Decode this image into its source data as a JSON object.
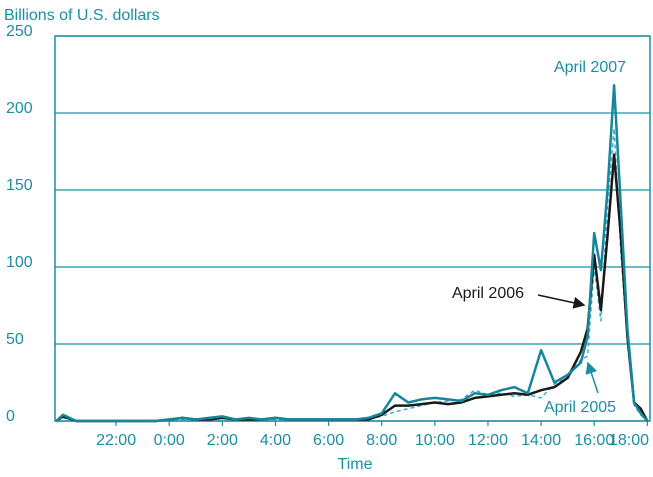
{
  "chart_data": {
    "type": "line",
    "ylabel": "Billions of U.S. dollars",
    "xlabel": "Time",
    "x": [
      19.75,
      20,
      20.5,
      21,
      21.5,
      22,
      22.5,
      23,
      23.5,
      24,
      24.5,
      25,
      25.5,
      26,
      26.5,
      27,
      27.5,
      28,
      28.5,
      29,
      29.5,
      30,
      30.5,
      31,
      31.5,
      32,
      32.5,
      33,
      33.5,
      34,
      34.5,
      35,
      35.5,
      36,
      36.5,
      37,
      37.5,
      38,
      38.5,
      39,
      39.5,
      39.75,
      40,
      40.25,
      40.5,
      40.75,
      41,
      41.25,
      41.5,
      41.75,
      42
    ],
    "series": [
      {
        "name": "April 2005",
        "color": "#3fb0c9",
        "line_style": "dashed",
        "values": [
          0,
          2,
          0,
          0,
          0,
          0,
          0,
          0,
          0,
          1,
          1,
          1,
          2,
          2,
          1,
          1,
          1,
          1,
          1,
          1,
          1,
          1,
          1,
          1,
          1,
          3,
          6,
          8,
          10,
          12,
          13,
          14,
          20,
          17,
          18,
          16,
          17,
          15,
          24,
          28,
          40,
          42,
          100,
          65,
          140,
          190,
          110,
          50,
          10,
          4,
          0
        ]
      },
      {
        "name": "April 2006",
        "color": "#1a1a1a",
        "line_style": "solid",
        "values": [
          0,
          3,
          0,
          0,
          0,
          0,
          0,
          0,
          0,
          1,
          2,
          1,
          1,
          2,
          1,
          1,
          1,
          2,
          1,
          1,
          1,
          1,
          1,
          1,
          1,
          4,
          10,
          10,
          11,
          12,
          11,
          12,
          15,
          16,
          17,
          18,
          17,
          20,
          22,
          28,
          45,
          60,
          108,
          72,
          120,
          173,
          120,
          55,
          12,
          8,
          0
        ]
      },
      {
        "name": "April 2007",
        "color": "#17869b",
        "line_style": "solid",
        "values": [
          0,
          4,
          0,
          0,
          0,
          0,
          0,
          0,
          0,
          1,
          2,
          1,
          2,
          3,
          1,
          2,
          1,
          2,
          1,
          1,
          1,
          1,
          1,
          1,
          2,
          5,
          18,
          12,
          14,
          15,
          14,
          13,
          18,
          17,
          20,
          22,
          18,
          46,
          25,
          30,
          38,
          55,
          122,
          98,
          150,
          218,
          140,
          60,
          12,
          5,
          0
        ]
      }
    ],
    "xlim": [
      19.7,
      42.1
    ],
    "xticks": [
      {
        "value": 22,
        "label": "22:00"
      },
      {
        "value": 24,
        "label": "0:00"
      },
      {
        "value": 26,
        "label": "2:00"
      },
      {
        "value": 28,
        "label": "4:00"
      },
      {
        "value": 30,
        "label": "6:00"
      },
      {
        "value": 32,
        "label": "8:00"
      },
      {
        "value": 34,
        "label": "10:00"
      },
      {
        "value": 36,
        "label": "12:00"
      },
      {
        "value": 38,
        "label": "14:00"
      },
      {
        "value": 40,
        "label": "16:00"
      },
      {
        "value": 42,
        "label": "18:00"
      }
    ],
    "ylim": [
      0,
      250
    ],
    "yticks": [
      0,
      50,
      100,
      150,
      200,
      250
    ],
    "grid": true
  }
}
